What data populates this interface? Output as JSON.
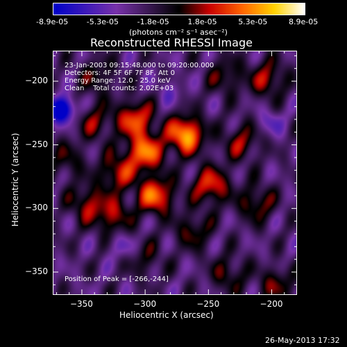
{
  "chart_data": {
    "type": "heatmap",
    "title": "Reconstructed RHESSI Image",
    "xlabel": "Heliocentric X (arcsec)",
    "ylabel": "Heliocentric Y (arcsec)",
    "xlim": [
      -373,
      -180
    ],
    "ylim": [
      -368,
      -176
    ],
    "x_ticks": [
      -350,
      -300,
      -250,
      -200
    ],
    "y_ticks": [
      -200,
      -250,
      -300,
      -350
    ],
    "colorbar": {
      "ticks": [
        "-8.9e-05",
        "-5.3e-05",
        "-1.8e-05",
        "1.8e-05",
        "5.3e-05",
        "8.9e-05"
      ],
      "unit_label": "(photons cm⁻² s⁻¹ asec⁻²)",
      "range": [
        -8.9e-05,
        8.9e-05
      ]
    },
    "annotations": {
      "time_range": "23-Jan-2003 09:15:48.000 to 09:20:00.000",
      "detectors": "Detectors: 4F 5F 6F 7F 8F, Att 0",
      "energy": "Energy Range: 12.0 - 25.0 keV",
      "method_counts": "Clean    Total counts: 2.02E+03",
      "peak": "Position of Peak = [-266,-244]"
    },
    "peak_position": [
      -266,
      -244
    ],
    "sources": [
      {
        "x": -268,
        "y": -242,
        "value": 8.9e-05
      },
      {
        "x": -300,
        "y": -256,
        "value": 7.5e-05
      },
      {
        "x": -308,
        "y": -230,
        "value": 6.5e-05
      },
      {
        "x": -292,
        "y": -290,
        "value": 7.2e-05
      },
      {
        "x": -248,
        "y": -282,
        "value": 6e-05
      },
      {
        "x": -322,
        "y": -272,
        "value": 5e-05
      },
      {
        "x": -346,
        "y": -296,
        "value": 4.2e-05
      },
      {
        "x": -326,
        "y": -306,
        "value": 4.5e-05
      },
      {
        "x": -262,
        "y": -318,
        "value": 3.5e-05
      },
      {
        "x": -212,
        "y": -296,
        "value": 4e-05
      },
      {
        "x": -224,
        "y": -248,
        "value": 4e-05
      },
      {
        "x": -236,
        "y": -196,
        "value": 3.2e-05
      },
      {
        "x": -203,
        "y": -198,
        "value": 4.5e-05
      },
      {
        "x": -340,
        "y": -232,
        "value": 3.5e-05
      },
      {
        "x": -338,
        "y": -196,
        "value": 3e-05
      },
      {
        "x": -362,
        "y": -262,
        "value": 2.8e-05
      },
      {
        "x": -234,
        "y": -352,
        "value": 3.2e-05
      },
      {
        "x": -196,
        "y": -360,
        "value": 3.5e-05
      },
      {
        "x": -300,
        "y": -340,
        "value": 2.5e-05
      },
      {
        "x": -366,
        "y": -222,
        "value": -8.9e-05
      },
      {
        "x": -318,
        "y": -330,
        "value": -2.5e-05
      },
      {
        "x": -200,
        "y": -232,
        "value": -2.5e-05
      },
      {
        "x": -280,
        "y": -208,
        "value": -2e-05
      }
    ]
  },
  "footer": {
    "date": "26-May-2013 17:32"
  }
}
